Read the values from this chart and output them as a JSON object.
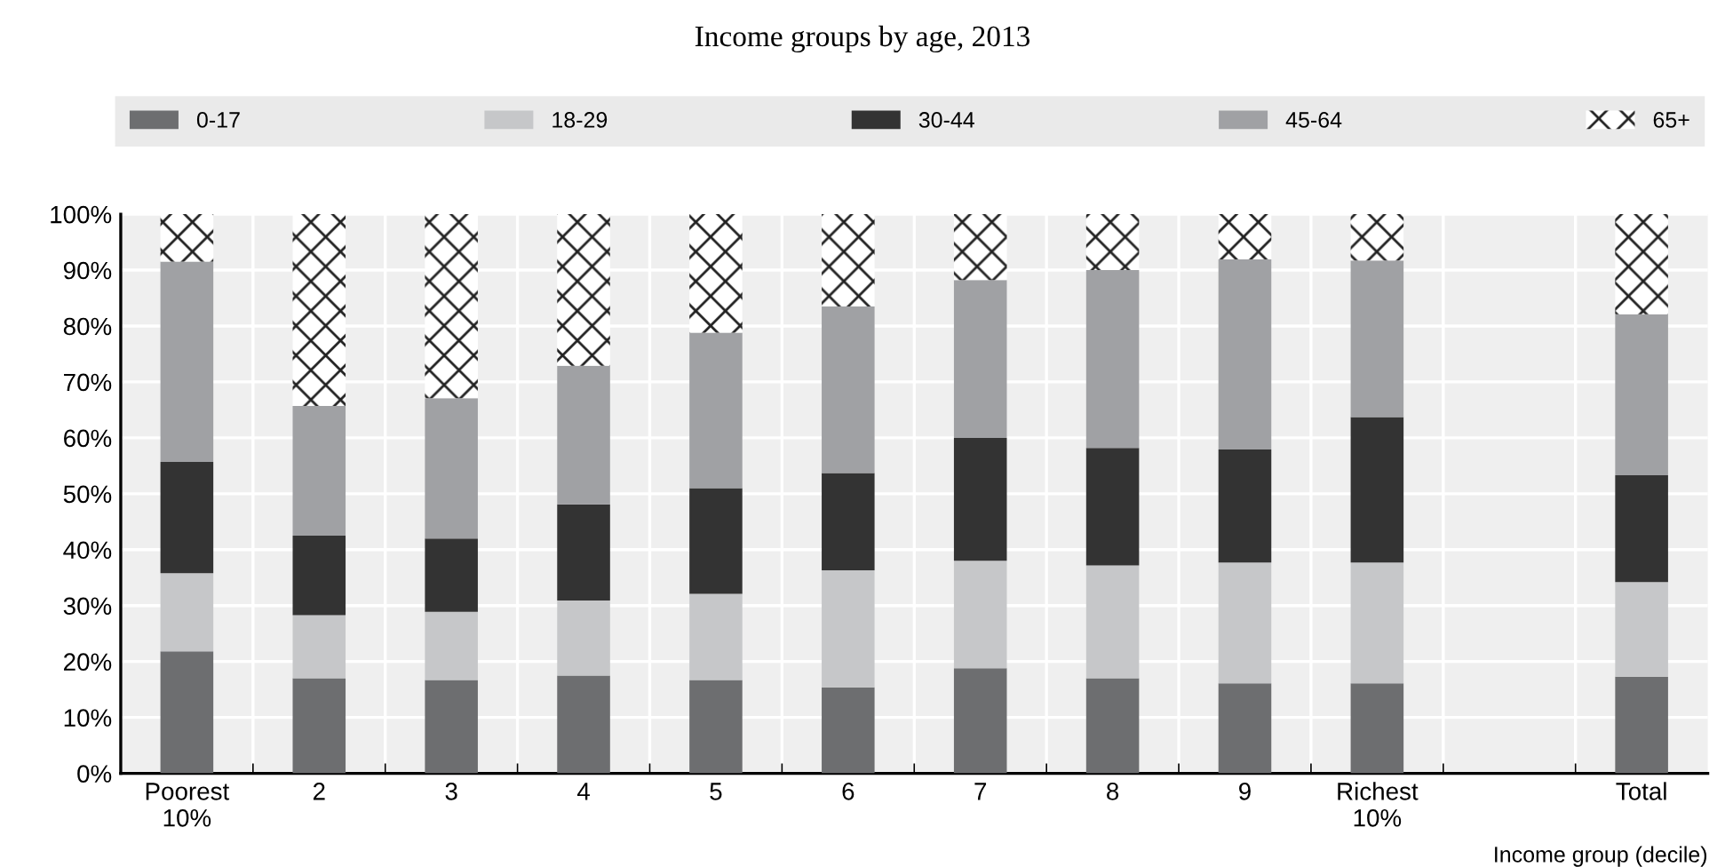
{
  "chart_data": {
    "type": "bar",
    "title": "Income groups by age, 2013",
    "xlabel": "Income group (decile)",
    "stacked": true,
    "categories": [
      "Poorest\n10%",
      "2",
      "3",
      "4",
      "5",
      "6",
      "7",
      "8",
      "9",
      "Richest\n10%",
      null,
      "Total"
    ],
    "series": [
      {
        "name": "0-17",
        "color": "#6d6e70",
        "values": [
          21.8,
          17.0,
          16.7,
          17.5,
          16.7,
          15.4,
          18.8,
          17.0,
          16.1,
          16.1,
          null,
          17.3
        ]
      },
      {
        "name": "18-29",
        "color": "#c6c7c9",
        "values": [
          14.0,
          11.3,
          12.2,
          13.4,
          15.4,
          20.9,
          19.2,
          20.2,
          21.6,
          21.6,
          null,
          16.9
        ]
      },
      {
        "name": "30-44",
        "color": "#333333",
        "values": [
          19.9,
          14.2,
          13.1,
          17.2,
          18.9,
          17.4,
          22.0,
          21.0,
          20.2,
          26.0,
          null,
          19.1
        ]
      },
      {
        "name": "45-64",
        "color": "#a0a1a4",
        "values": [
          35.8,
          23.2,
          25.1,
          24.8,
          27.8,
          29.8,
          28.2,
          31.8,
          34.0,
          28.0,
          null,
          28.8
        ]
      },
      {
        "name": "65+",
        "color": "#ffffff",
        "values": [
          8.5,
          34.3,
          32.9,
          27.1,
          21.2,
          16.5,
          11.8,
          10.0,
          8.1,
          8.3,
          null,
          17.9
        ]
      }
    ],
    "ylim": [
      0,
      100
    ],
    "yticks": [
      {
        "value": 0,
        "label": "0%"
      },
      {
        "value": 10,
        "label": "10%"
      },
      {
        "value": 20,
        "label": "20%"
      },
      {
        "value": 30,
        "label": "30%"
      },
      {
        "value": 40,
        "label": "40%"
      },
      {
        "value": 50,
        "label": "50%"
      },
      {
        "value": 60,
        "label": "60%"
      },
      {
        "value": 70,
        "label": "70%"
      },
      {
        "value": 80,
        "label": "80%"
      },
      {
        "value": 90,
        "label": "90%"
      },
      {
        "value": 100,
        "label": "100%"
      }
    ],
    "grid": true,
    "legend": "top"
  }
}
